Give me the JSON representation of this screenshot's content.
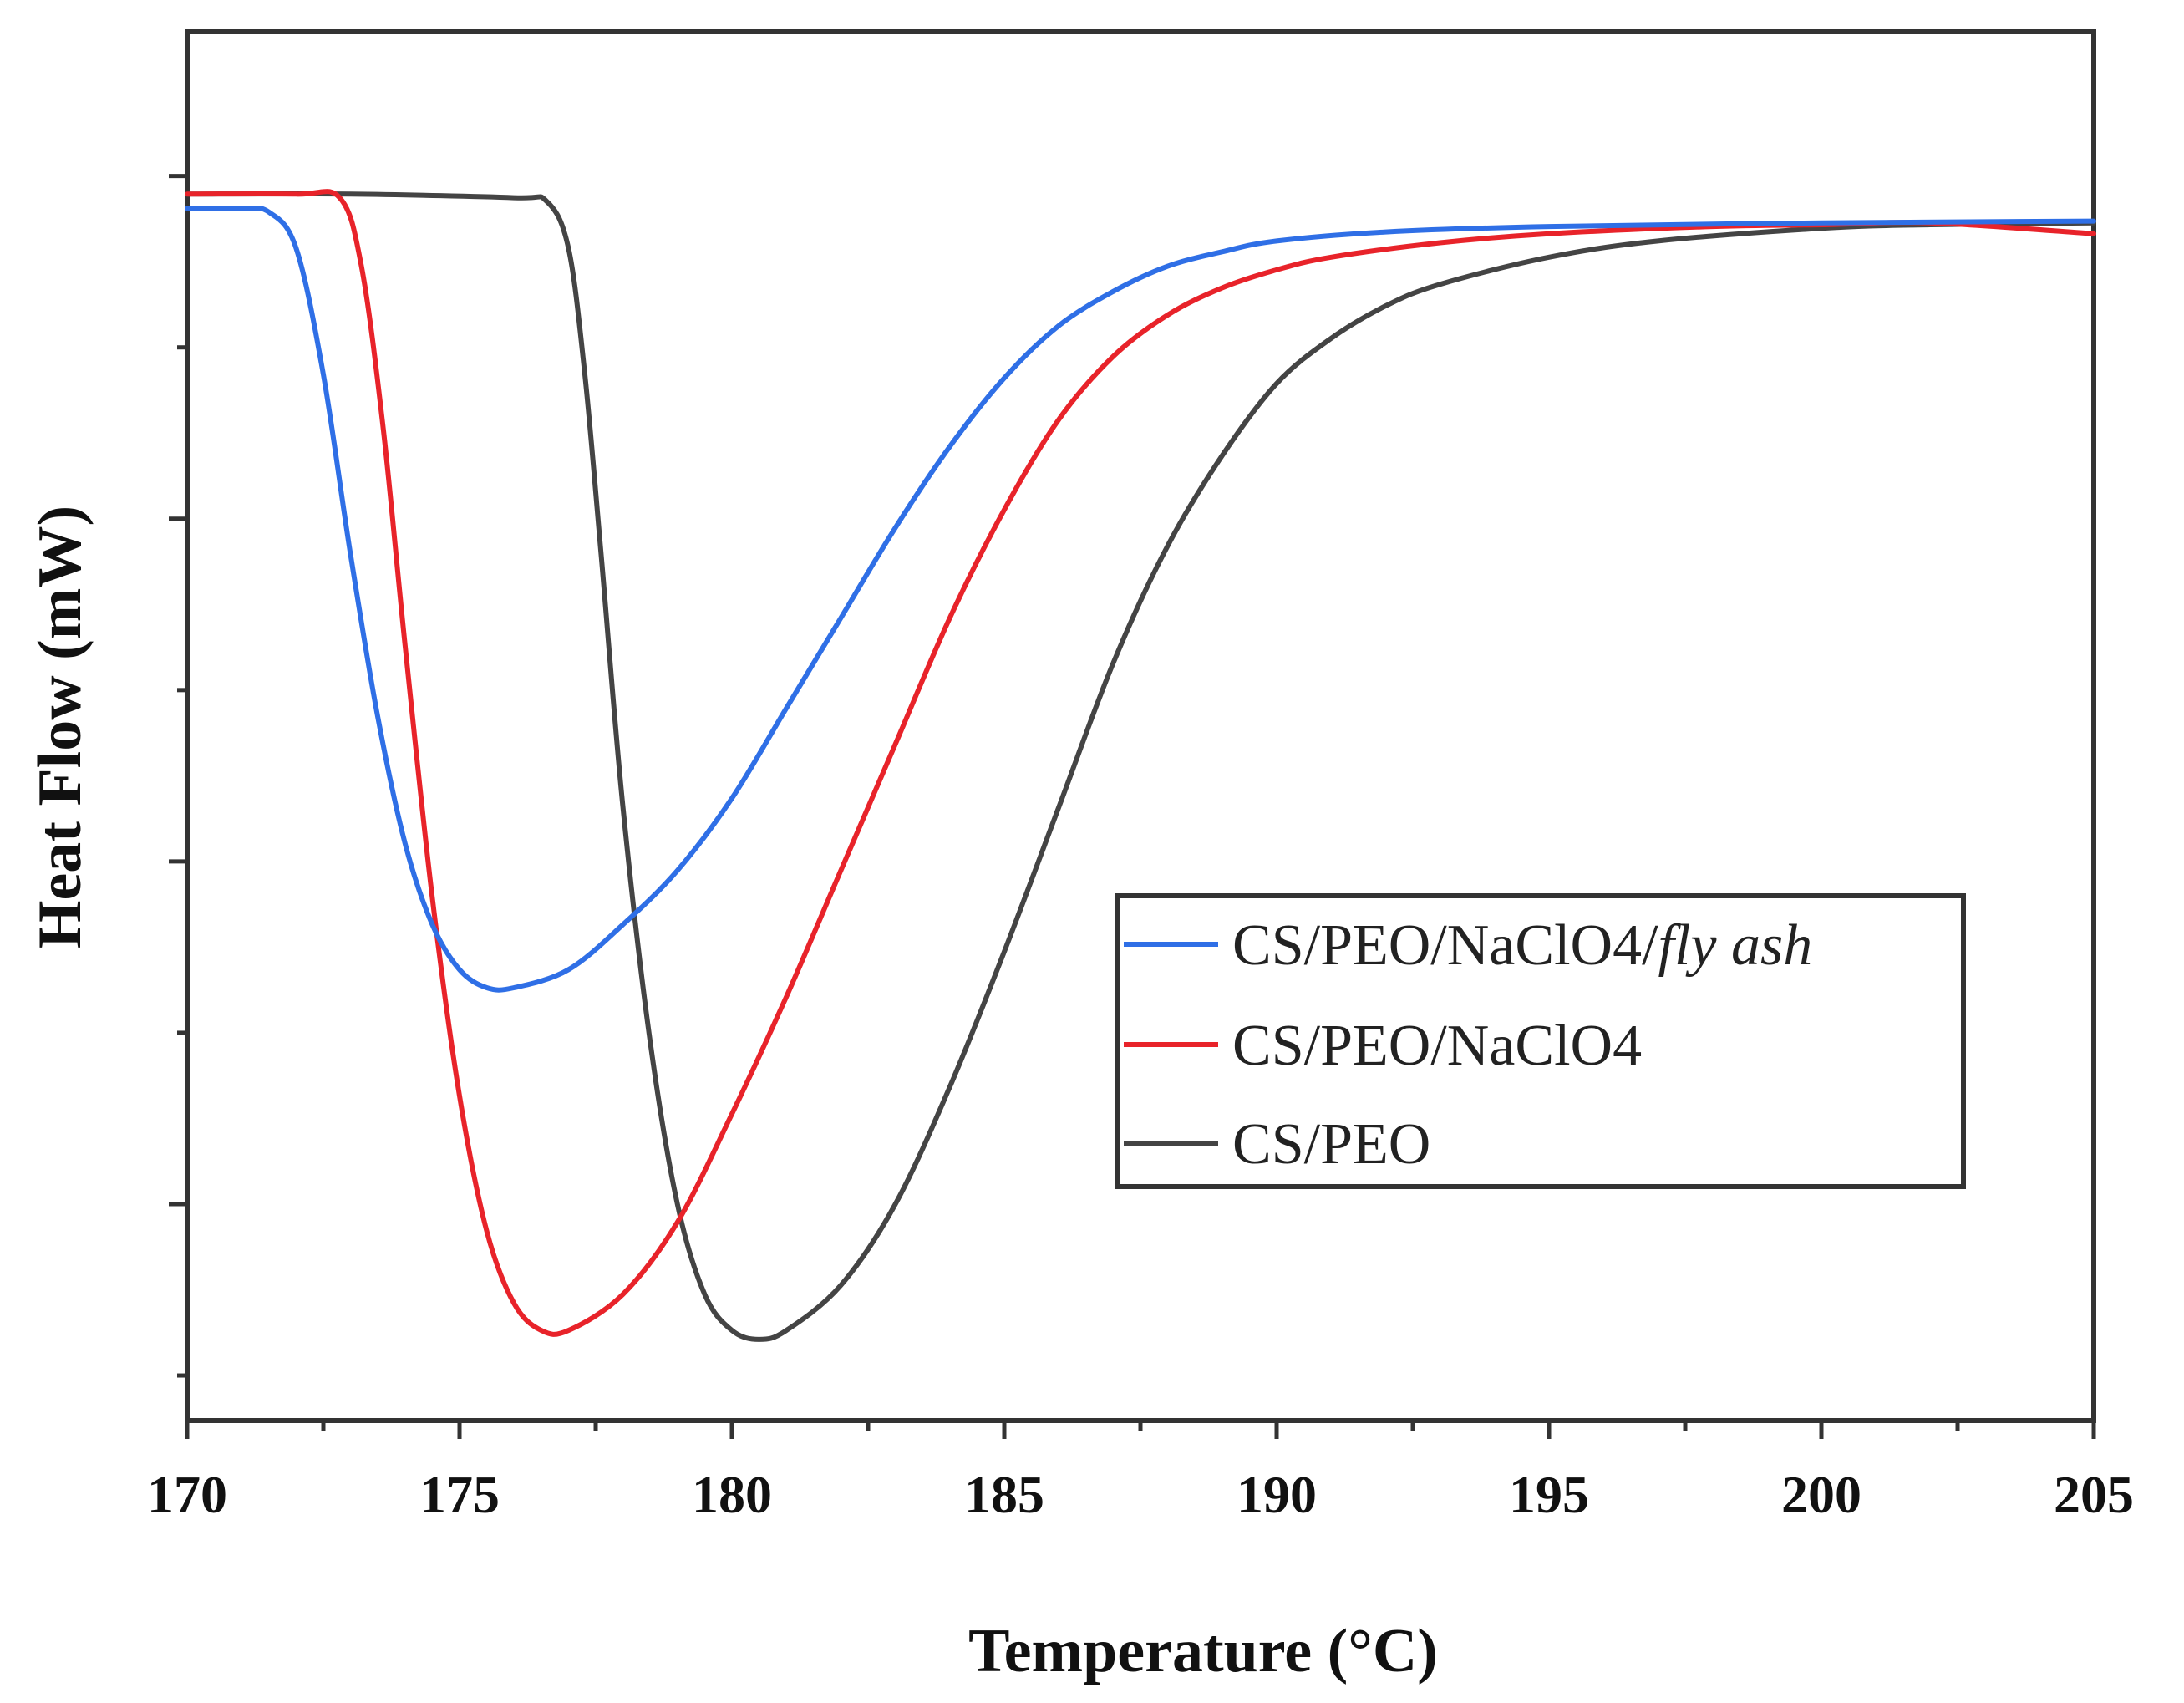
{
  "chart_data": {
    "type": "line",
    "title": "",
    "xlabel": "Temperature (°C)",
    "ylabel": "Heat Flow (mW)",
    "xlim": [
      170,
      205
    ],
    "ylim": [
      -5.8,
      1.9
    ],
    "x_ticks": [
      170,
      175,
      180,
      185,
      190,
      195,
      200,
      205
    ],
    "x_tick_labels": [
      "170",
      "175",
      "180",
      "185",
      "190",
      "195",
      "200",
      "205"
    ],
    "y_tick_labels_shown": false,
    "grid": false,
    "legend_position": "lower-right",
    "series": [
      {
        "name": "CS/PEO/NaClO4/fly ash",
        "legend_main": "CS/PEO/NaClO4/",
        "legend_italic": "fly ash",
        "color": "#2f6fe6",
        "points": [
          [
            170,
            0.92
          ],
          [
            171,
            0.92
          ],
          [
            171.5,
            0.9
          ],
          [
            172,
            0.7
          ],
          [
            172.5,
            0.0
          ],
          [
            173,
            -1.0
          ],
          [
            173.5,
            -1.9
          ],
          [
            174,
            -2.6
          ],
          [
            174.5,
            -3.05
          ],
          [
            175,
            -3.3
          ],
          [
            175.5,
            -3.4
          ],
          [
            176,
            -3.4
          ],
          [
            177,
            -3.3
          ],
          [
            178,
            -3.05
          ],
          [
            179,
            -2.75
          ],
          [
            180,
            -2.35
          ],
          [
            181,
            -1.85
          ],
          [
            182,
            -1.35
          ],
          [
            183,
            -0.85
          ],
          [
            184,
            -0.4
          ],
          [
            185,
            -0.02
          ],
          [
            186,
            0.27
          ],
          [
            187,
            0.46
          ],
          [
            188,
            0.6
          ],
          [
            189,
            0.68
          ],
          [
            190,
            0.74
          ],
          [
            192,
            0.79
          ],
          [
            195,
            0.82
          ],
          [
            200,
            0.84
          ],
          [
            205,
            0.85
          ]
        ]
      },
      {
        "name": "CS/PEO/NaClO4",
        "legend_main": "CS/PEO/NaClO4",
        "legend_italic": "",
        "color": "#e8232a",
        "points": [
          [
            170,
            1.0
          ],
          [
            172,
            1.0
          ],
          [
            172.8,
            0.98
          ],
          [
            173.2,
            0.6
          ],
          [
            173.6,
            -0.3
          ],
          [
            174,
            -1.5
          ],
          [
            174.5,
            -2.9
          ],
          [
            175,
            -4.0
          ],
          [
            175.5,
            -4.75
          ],
          [
            176,
            -5.15
          ],
          [
            176.5,
            -5.3
          ],
          [
            177,
            -5.3
          ],
          [
            178,
            -5.1
          ],
          [
            179,
            -4.7
          ],
          [
            180,
            -4.1
          ],
          [
            181,
            -3.45
          ],
          [
            182,
            -2.75
          ],
          [
            183,
            -2.05
          ],
          [
            184,
            -1.35
          ],
          [
            185,
            -0.75
          ],
          [
            186,
            -0.25
          ],
          [
            187,
            0.1
          ],
          [
            188,
            0.33
          ],
          [
            189,
            0.48
          ],
          [
            190,
            0.58
          ],
          [
            191,
            0.65
          ],
          [
            193,
            0.73
          ],
          [
            195,
            0.78
          ],
          [
            198,
            0.82
          ],
          [
            200,
            0.83
          ],
          [
            202,
            0.84
          ],
          [
            205,
            0.78
          ]
        ]
      },
      {
        "name": "CS/PEO",
        "legend_main": "CS/PEO",
        "legend_italic": "",
        "color": "#444444",
        "points": [
          [
            170,
            1.0
          ],
          [
            173,
            1.0
          ],
          [
            176,
            0.98
          ],
          [
            176.6,
            0.96
          ],
          [
            177,
            0.7
          ],
          [
            177.3,
            0.0
          ],
          [
            177.6,
            -1.0
          ],
          [
            178,
            -2.4
          ],
          [
            178.5,
            -3.7
          ],
          [
            179,
            -4.6
          ],
          [
            179.5,
            -5.1
          ],
          [
            180,
            -5.3
          ],
          [
            180.5,
            -5.35
          ],
          [
            181,
            -5.3
          ],
          [
            182,
            -5.05
          ],
          [
            183,
            -4.6
          ],
          [
            184,
            -3.95
          ],
          [
            185,
            -3.2
          ],
          [
            186,
            -2.4
          ],
          [
            187,
            -1.6
          ],
          [
            188,
            -0.95
          ],
          [
            189,
            -0.45
          ],
          [
            190,
            -0.05
          ],
          [
            191,
            0.2
          ],
          [
            192,
            0.38
          ],
          [
            193,
            0.5
          ],
          [
            195,
            0.65
          ],
          [
            197,
            0.74
          ],
          [
            200,
            0.81
          ],
          [
            202,
            0.83
          ],
          [
            205,
            0.84
          ]
        ]
      }
    ]
  }
}
